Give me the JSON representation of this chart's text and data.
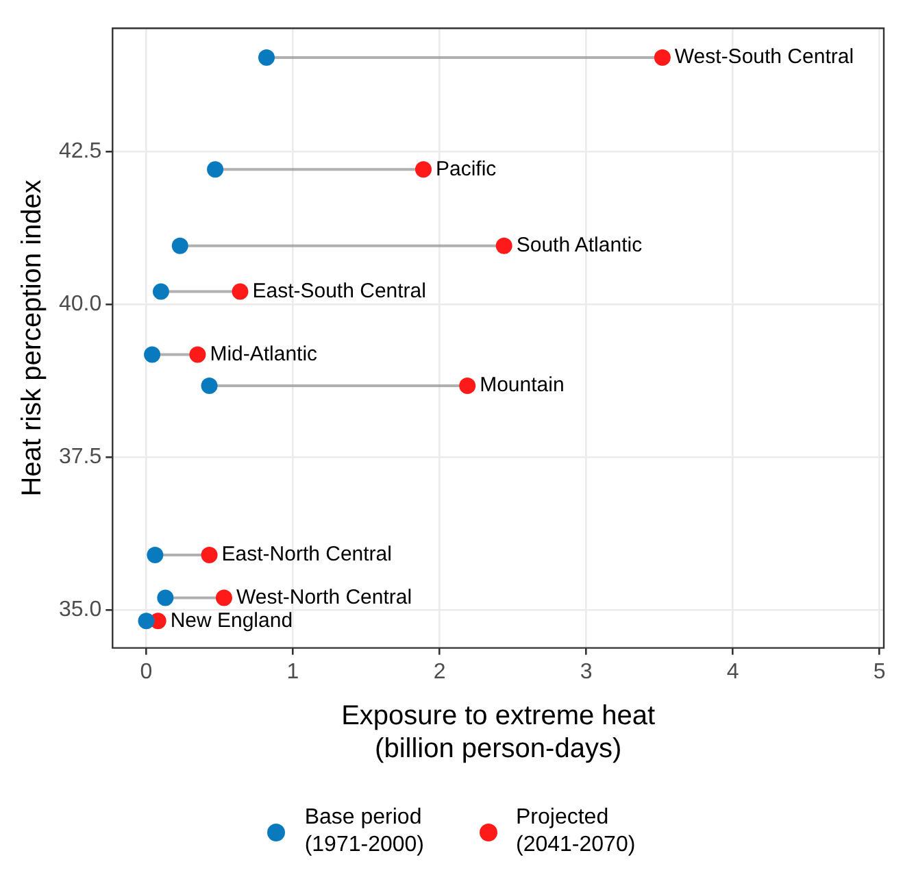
{
  "chart_data": {
    "type": "scatter",
    "xlabel": "Exposure to extreme heat\n(billion person-days)",
    "ylabel": "Heat risk perception index",
    "xlim": [
      -0.23,
      5.03
    ],
    "ylim": [
      34.38,
      44.52
    ],
    "xticks": [
      0,
      1,
      2,
      3,
      4,
      5
    ],
    "yticks": [
      {
        "value": 35,
        "label": "35.0"
      },
      {
        "value": 37.5,
        "label": "37.5"
      },
      {
        "value": 40,
        "label": "40.0"
      },
      {
        "value": 42.5,
        "label": "42.5"
      }
    ],
    "grid": true,
    "legend": "bottom",
    "marker": "circle",
    "series": [
      {
        "name": "Base period\n(1971-2000)",
        "color": "#0a7abf",
        "x": [
          0.82,
          0.47,
          0.23,
          0.1,
          0.04,
          0.43,
          0.06,
          0.13,
          0.0
        ],
        "values": [
          44.04,
          42.21,
          40.96,
          40.21,
          39.18,
          38.67,
          35.9,
          35.2,
          34.82
        ]
      },
      {
        "name": "Projected\n(2041-2070)",
        "color": "#ff1a1a",
        "x": [
          3.52,
          1.89,
          2.44,
          0.64,
          0.35,
          2.19,
          0.43,
          0.53,
          0.08
        ],
        "values": [
          44.04,
          42.21,
          40.96,
          40.21,
          39.18,
          38.67,
          35.9,
          35.2,
          34.82
        ]
      }
    ],
    "annotations": [
      {
        "text": "West-South Central",
        "x": 3.52,
        "y": 44.04
      },
      {
        "text": "Pacific",
        "x": 1.89,
        "y": 42.21
      },
      {
        "text": "South Atlantic",
        "x": 2.44,
        "y": 40.96
      },
      {
        "text": "East-South Central",
        "x": 0.64,
        "y": 40.21
      },
      {
        "text": "Mid-Atlantic",
        "x": 0.35,
        "y": 39.18
      },
      {
        "text": "Mountain",
        "x": 2.19,
        "y": 38.67
      },
      {
        "text": "East-North Central",
        "x": 0.43,
        "y": 35.9
      },
      {
        "text": "West-North Central",
        "x": 0.53,
        "y": 35.2
      },
      {
        "text": "New England",
        "x": 0.08,
        "y": 34.82
      }
    ]
  }
}
